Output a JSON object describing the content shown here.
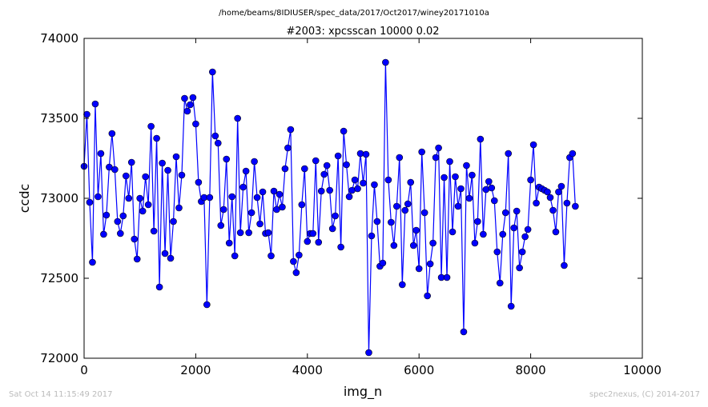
{
  "footer": {
    "left": "Sat Oct 14 11:15:49 2017",
    "right": "spec2nexus, (C) 2014-2017"
  },
  "chart_data": {
    "type": "line",
    "suptitle": "/home/beams/8IDIUSER/spec_data/2017/Oct2017/winey20171010a",
    "title": "#2003: xpcsscan 10000 0.02",
    "xlabel": "img_n",
    "ylabel": "ccdc",
    "xlim": [
      0,
      10000
    ],
    "ylim": [
      72000,
      74000
    ],
    "xticks": [
      0,
      2000,
      4000,
      6000,
      8000,
      10000
    ],
    "yticks": [
      72000,
      72500,
      73000,
      73500,
      74000
    ],
    "xtick_labels": [
      "0",
      "2000",
      "4000",
      "6000",
      "8000",
      "10000"
    ],
    "ytick_labels": [
      "72000",
      "72500",
      "73000",
      "73500",
      "74000"
    ],
    "grid": false,
    "line_color": "#0000ff",
    "marker_color": "#0000ff",
    "series": [
      {
        "x_start": 0,
        "x_step": 50,
        "values": [
          73200,
          73525,
          72975,
          72600,
          73590,
          73010,
          73280,
          72775,
          72895,
          73195,
          73405,
          73180,
          72855,
          72780,
          72890,
          73140,
          73000,
          73225,
          72745,
          72620,
          73000,
          72920,
          73135,
          72960,
          73450,
          72795,
          73375,
          72445,
          73220,
          72655,
          73175,
          72625,
          72855,
          73260,
          72940,
          73145,
          73625,
          73545,
          73585,
          73630,
          73465,
          73100,
          72980,
          73005,
          72335,
          73005,
          73790,
          73390,
          73345,
          72830,
          72930,
          73245,
          72720,
          73010,
          72640,
          73500,
          72785,
          73070,
          73170,
          72785,
          72910,
          73230,
          73005,
          72840,
          73040,
          72780,
          72785,
          72640,
          73045,
          72930,
          73025,
          72945,
          73185,
          73315,
          73430,
          72605,
          72535,
          72645,
          72960,
          73185,
          72730,
          72780,
          72780,
          73235,
          72725,
          73045,
          73150,
          73205,
          73050,
          72810,
          72890,
          73265,
          72695,
          73420,
          73210,
          73010,
          73050,
          73115,
          73060,
          73280,
          73095,
          73275,
          72035,
          72765,
          73085,
          72855,
          72575,
          72595,
          73850,
          73115,
          72850,
          72705,
          72950,
          73255,
          72460,
          72925,
          72965,
          73100,
          72705,
          72800,
          72560,
          73290,
          72910,
          72390,
          72590,
          72720,
          73255,
          73315,
          72505,
          73130,
          72505,
          73230,
          72790,
          73135,
          72950,
          73060,
          72165,
          73205,
          73000,
          73145,
          72720,
          72855,
          73370,
          72775,
          73055,
          73105,
          73065,
          72985,
          72665,
          72470,
          72775,
          72910,
          73280,
          72325,
          72815,
          72920,
          72565,
          72665,
          72760,
          72805,
          73115,
          73335,
          72970,
          73070,
          73060,
          73050,
          73040,
          73005,
          72925,
          72790,
          73040,
          73075,
          72580,
          72970,
          73255,
          73280,
          72950
        ]
      }
    ]
  }
}
